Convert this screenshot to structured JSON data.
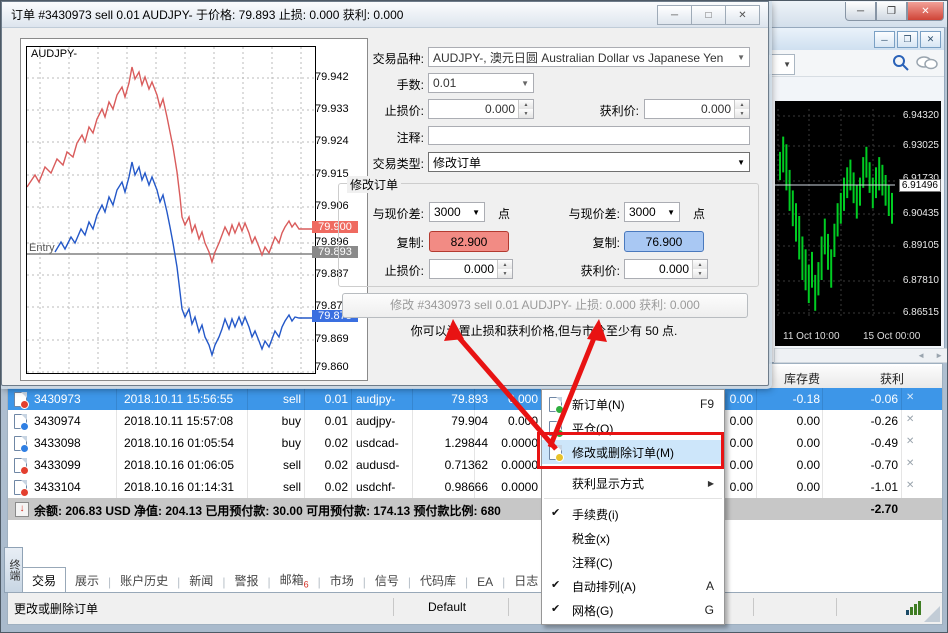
{
  "icons": {
    "minimize": "─",
    "maximize": "□",
    "restore": "❐",
    "close": "✕",
    "combo_arrow": "▼",
    "spin_up": "▲",
    "spin_down": "▼",
    "check": "✔",
    "submenu": "▶",
    "scroll_left": "◄",
    "scroll_right": "►",
    "down_arrow": "↓"
  },
  "dialog": {
    "title": "订单 #3430973 sell 0.01 AUDJPY- 于价格: 79.893 止损: 0.000 获利: 0.000",
    "chart": {
      "symbol": "AUDJPY-",
      "entry_label": "Entry",
      "axis_labels": [
        "79.942",
        "79.933",
        "79.924",
        "79.915",
        "79.906",
        "79.896",
        "79.887",
        "79.878",
        "79.869",
        "79.860"
      ],
      "ask_badge": "79.900",
      "entry_badge": "79.893",
      "bid_badge": "79.875"
    },
    "form": {
      "symbol_label": "交易品种:",
      "symbol_value": "AUDJPY-, 澳元日圆 Australian Dollar vs Japanese Yen",
      "lots_label": "手数:",
      "lots_value": "0.01",
      "sl_label": "止损价:",
      "sl_value": "0.000",
      "tp_label": "获利价:",
      "tp_value": "0.000",
      "comment_label": "注释:",
      "comment_value": "",
      "type_label": "交易类型:",
      "type_value": "修改订单"
    },
    "modify_group": {
      "title": "修改订单",
      "diff_label": "与现价差:",
      "diff_value": "3000",
      "points_label": "点",
      "copy_label": "复制:",
      "copy_sl_value": "82.900",
      "copy_tp_value": "76.900",
      "sl_label": "止损价:",
      "sl_value": "0.000",
      "tp_label": "获利价:",
      "tp_value": "0.000",
      "modify_button": "修改 #3430973 sell 0.01 AUDJPY- 止损: 0.000 获利: 0.000",
      "hint": "你可以设置止损和获利价格,但与市价至少有 50 点."
    }
  },
  "market_window": {
    "price_labels": [
      "6.94320",
      "6.93025",
      "6.91730",
      "6.90435",
      "6.89105",
      "6.87810",
      "6.86515"
    ],
    "current_price": "6.91496",
    "date_labels": [
      "11 Oct 10:00",
      "15 Oct 00:00"
    ],
    "candles": [
      [
        6.928,
        6.917
      ],
      [
        6.934,
        6.92
      ],
      [
        6.931,
        6.913
      ],
      [
        6.921,
        6.905
      ],
      [
        6.913,
        6.899
      ],
      [
        6.908,
        6.893
      ],
      [
        6.903,
        6.886
      ],
      [
        6.895,
        6.878
      ],
      [
        6.89,
        6.874
      ],
      [
        6.884,
        6.869
      ],
      [
        6.889,
        6.875
      ],
      [
        6.88,
        6.866
      ],
      [
        6.885,
        6.872
      ],
      [
        6.895,
        6.878
      ],
      [
        6.902,
        6.888
      ],
      [
        6.896,
        6.882
      ],
      [
        6.89,
        6.875
      ],
      [
        6.9,
        6.887
      ],
      [
        6.908,
        6.895
      ],
      [
        6.912,
        6.9
      ],
      [
        6.918,
        6.905
      ],
      [
        6.922,
        6.91
      ],
      [
        6.925,
        6.913
      ],
      [
        6.92,
        6.908
      ],
      [
        6.915,
        6.902
      ],
      [
        6.918,
        6.907
      ],
      [
        6.926,
        6.914
      ],
      [
        6.93,
        6.918
      ],
      [
        6.924,
        6.912
      ],
      [
        6.918,
        6.906
      ],
      [
        6.922,
        6.91
      ],
      [
        6.926,
        6.913
      ],
      [
        6.923,
        6.911
      ],
      [
        6.919,
        6.907
      ],
      [
        6.915,
        6.903
      ],
      [
        6.912,
        6.9
      ]
    ]
  },
  "terminal": {
    "header": {
      "storage": "库存费",
      "profit": "获利"
    },
    "rows": [
      {
        "order": "3430973",
        "time": "2018.10.11 15:56:55",
        "type": "sell",
        "lots": "0.01",
        "symbol": "audjpy-",
        "price": "79.893",
        "sl": "0.000",
        "tax": "0.00",
        "storage": "-0.18",
        "profit": "-0.06"
      },
      {
        "order": "3430974",
        "time": "2018.10.11 15:57:08",
        "type": "buy",
        "lots": "0.01",
        "symbol": "audjpy-",
        "price": "79.904",
        "sl": "0.000",
        "tax": "0.00",
        "storage": "0.00",
        "profit": "-0.26"
      },
      {
        "order": "3433098",
        "time": "2018.10.16 01:05:54",
        "type": "buy",
        "lots": "0.02",
        "symbol": "usdcad-",
        "price": "1.29844",
        "sl": "0.0000",
        "tax": "0.00",
        "storage": "0.00",
        "profit": "-0.49"
      },
      {
        "order": "3433099",
        "time": "2018.10.16 01:06:05",
        "type": "sell",
        "lots": "0.02",
        "symbol": "audusd-",
        "price": "0.71362",
        "sl": "0.0000",
        "tax": "0.00",
        "storage": "0.00",
        "profit": "-0.70"
      },
      {
        "order": "3433104",
        "time": "2018.10.16 01:14:31",
        "type": "sell",
        "lots": "0.02",
        "symbol": "usdchf-",
        "price": "0.98666",
        "sl": "0.0000",
        "tax": "0.00",
        "storage": "0.00",
        "profit": "-1.01"
      }
    ],
    "summary": {
      "text": "余额: 206.83 USD  净值: 204.13  已用预付款: 30.00  可用预付款: 174.13  预付款比例: 680",
      "profit": "-2.70"
    },
    "tabs": [
      "交易",
      "展示",
      "账户历史",
      "新闻",
      "警报",
      "邮箱",
      "市场",
      "信号",
      "代码库",
      "EA",
      "日志"
    ],
    "mail_badge": "6",
    "dock_label": "终端"
  },
  "context_menu": {
    "items": [
      {
        "label": "新订单(N)",
        "shortcut": "F9"
      },
      {
        "label": "平仓(O)",
        "shortcut": ""
      },
      {
        "label": "修改或删除订单(M)",
        "shortcut": ""
      },
      {
        "label": "获利显示方式",
        "shortcut": ""
      },
      {
        "label": "手续费(i)",
        "shortcut": ""
      },
      {
        "label": "税金(x)",
        "shortcut": ""
      },
      {
        "label": "注释(C)",
        "shortcut": ""
      },
      {
        "label": "自动排列(A)",
        "shortcut": "A"
      },
      {
        "label": "网格(G)",
        "shortcut": "G"
      }
    ]
  },
  "status_bar": {
    "hint": "更改或删除订单",
    "profile": "Default"
  }
}
